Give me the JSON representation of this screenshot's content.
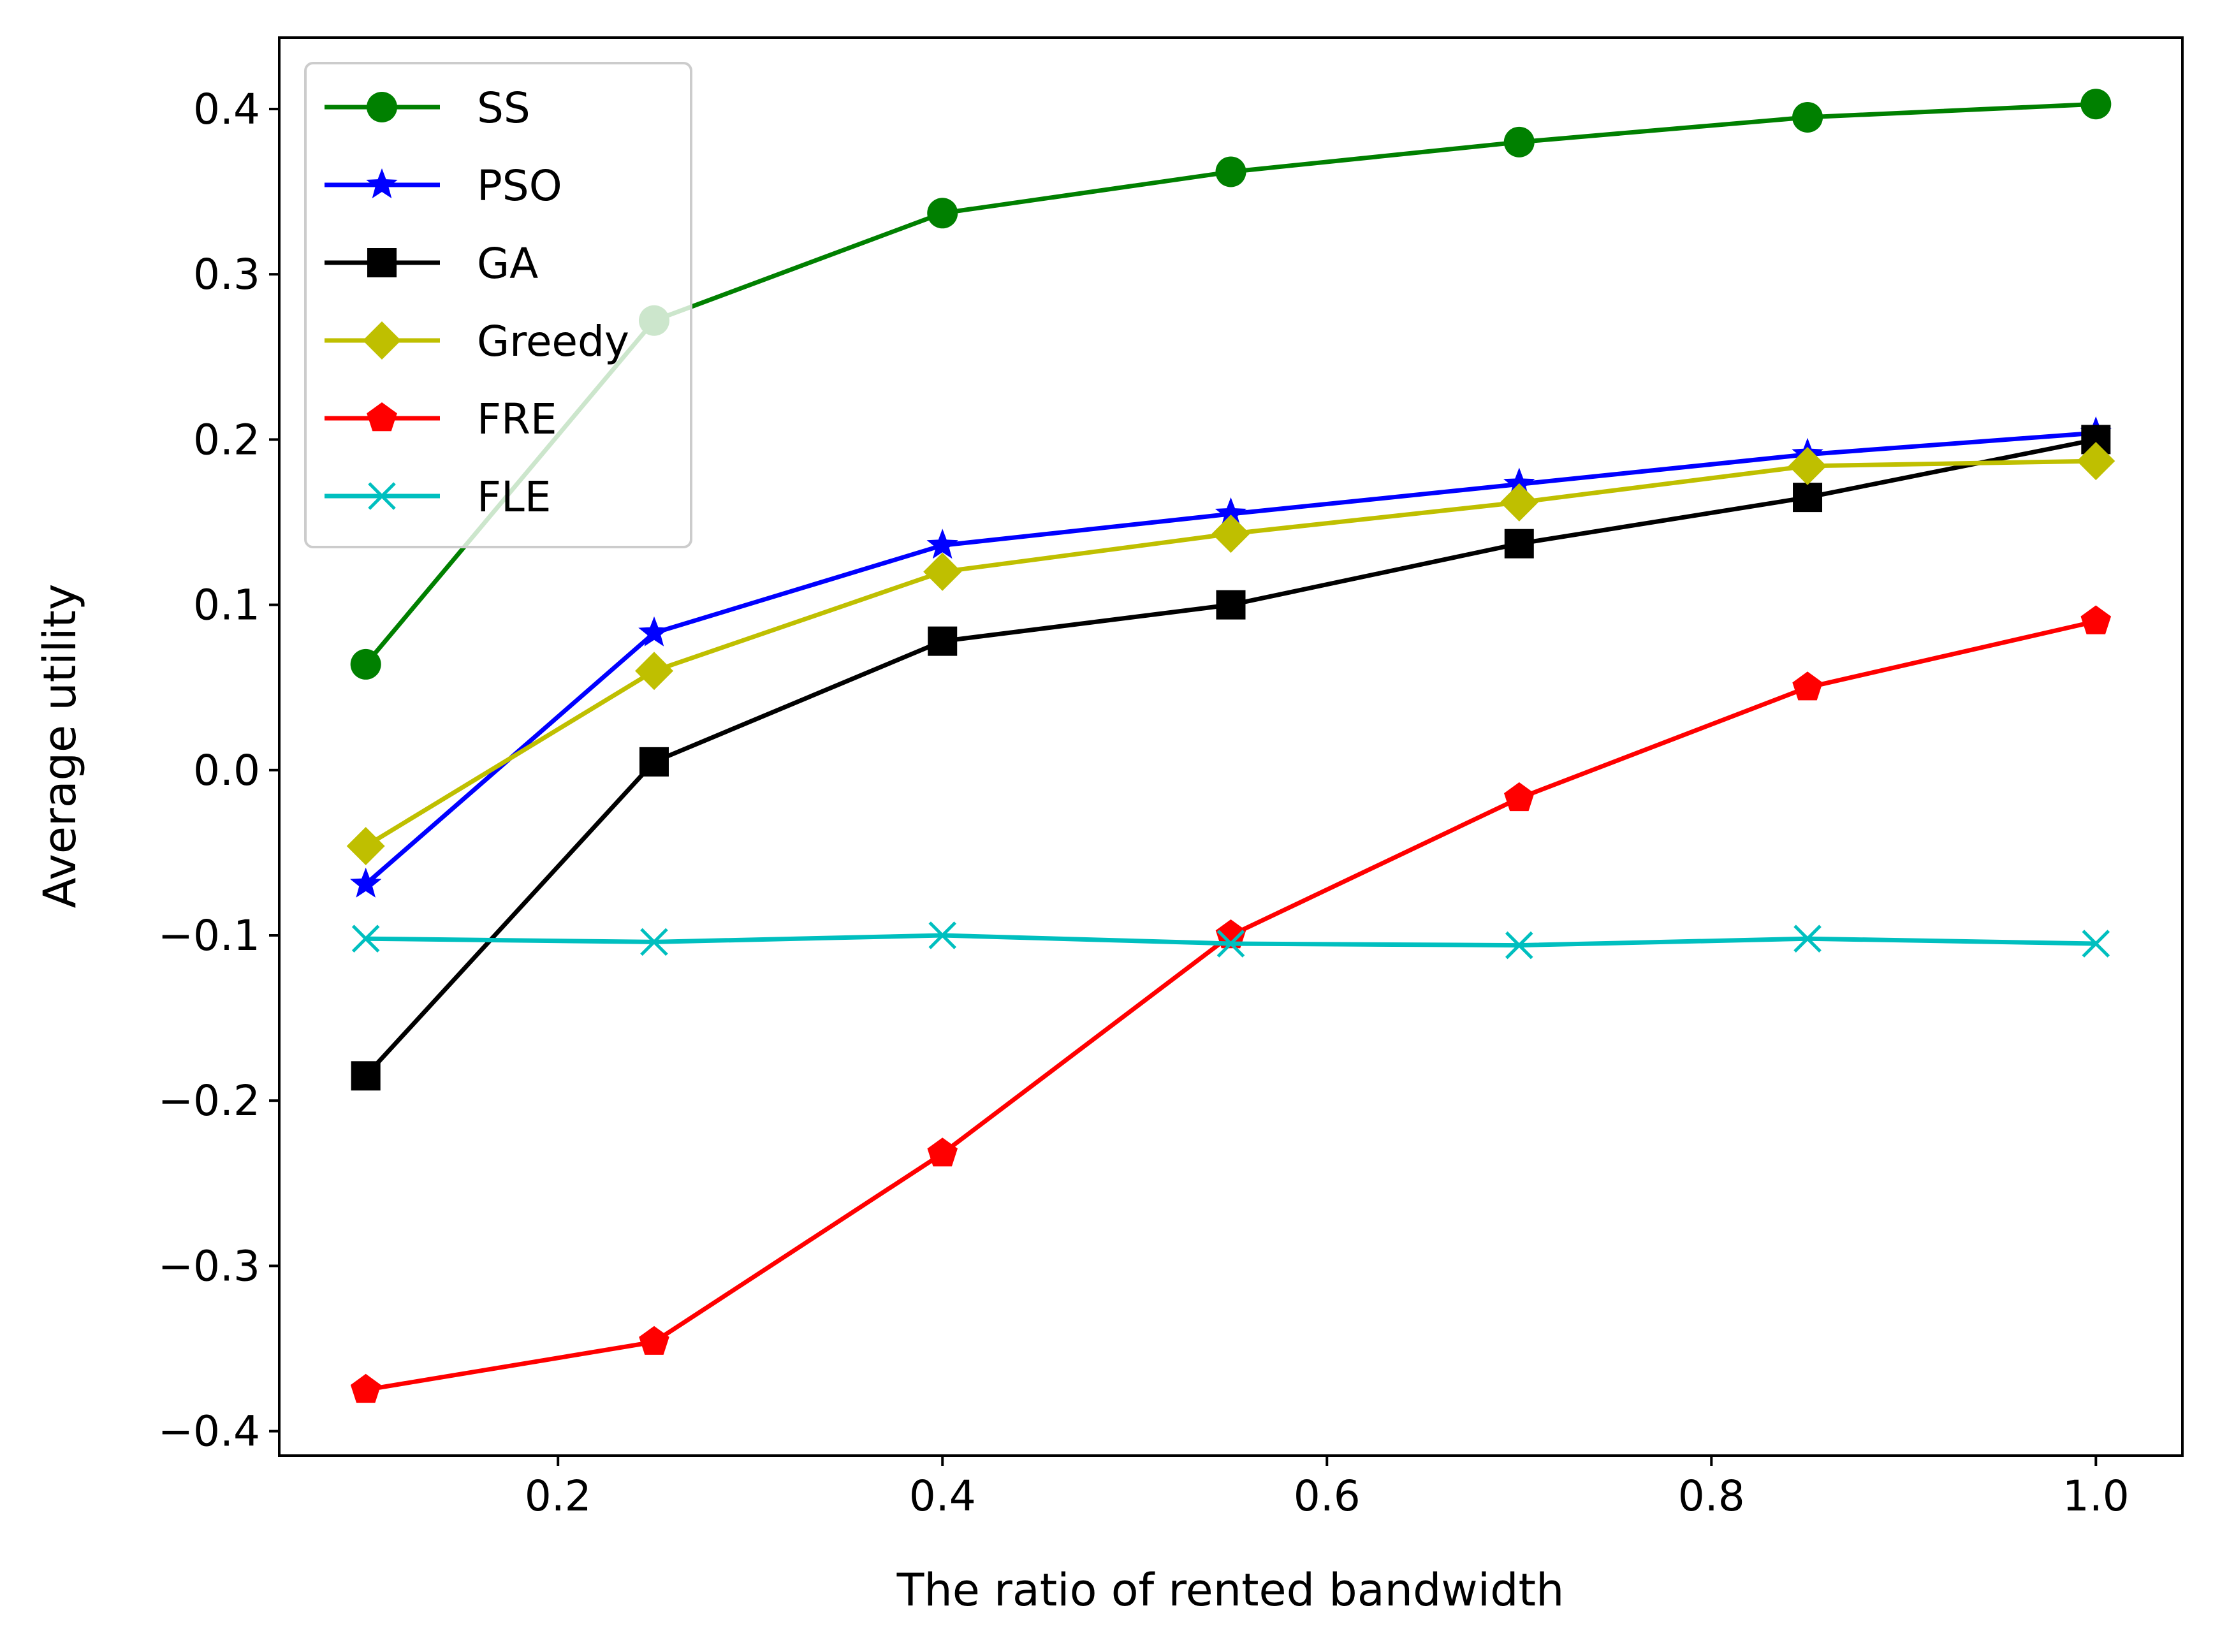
{
  "chart_data": {
    "type": "line",
    "xlabel": "The ratio of rented bandwidth",
    "ylabel": "Average utility",
    "xlim": [
      0.055,
      1.045
    ],
    "ylim": [
      -0.4148,
      0.4432
    ],
    "xticks": [
      0.2,
      0.4,
      0.6,
      0.8,
      1.0
    ],
    "xtick_labels": [
      "0.2",
      "0.4",
      "0.6",
      "0.8",
      "1.0"
    ],
    "yticks": [
      -0.4,
      -0.3,
      -0.2,
      -0.1,
      0.0,
      0.1,
      0.2,
      0.3,
      0.4
    ],
    "ytick_labels": [
      "−0.4",
      "−0.3",
      "−0.2",
      "−0.1",
      "0.0",
      "0.1",
      "0.2",
      "0.3",
      "0.4"
    ],
    "grid": false,
    "legend_position": "top-left",
    "x": [
      0.1,
      0.25,
      0.4,
      0.55,
      0.7,
      0.85,
      1.0
    ],
    "series": [
      {
        "name": "SS",
        "color": "#008000",
        "marker": "circle",
        "values": [
          0.064,
          0.272,
          0.337,
          0.362,
          0.38,
          0.395,
          0.403
        ]
      },
      {
        "name": "PSO",
        "color": "#0000ff",
        "marker": "star",
        "values": [
          -0.069,
          0.083,
          0.136,
          0.155,
          0.173,
          0.191,
          0.204
        ]
      },
      {
        "name": "GA",
        "color": "#000000",
        "marker": "square",
        "values": [
          -0.185,
          0.005,
          0.078,
          0.1,
          0.137,
          0.165,
          0.2
        ]
      },
      {
        "name": "Greedy",
        "color": "#bfbf00",
        "marker": "diamond",
        "values": [
          -0.046,
          0.06,
          0.12,
          0.143,
          0.162,
          0.184,
          0.187
        ]
      },
      {
        "name": "FRE",
        "color": "#ff0000",
        "marker": "pentagon",
        "values": [
          -0.375,
          -0.346,
          -0.232,
          -0.1,
          -0.017,
          0.05,
          0.09
        ]
      },
      {
        "name": "FLE",
        "color": "#00bfbf",
        "marker": "x",
        "values": [
          -0.102,
          -0.104,
          -0.1,
          -0.105,
          -0.106,
          -0.102,
          -0.105
        ]
      }
    ]
  }
}
